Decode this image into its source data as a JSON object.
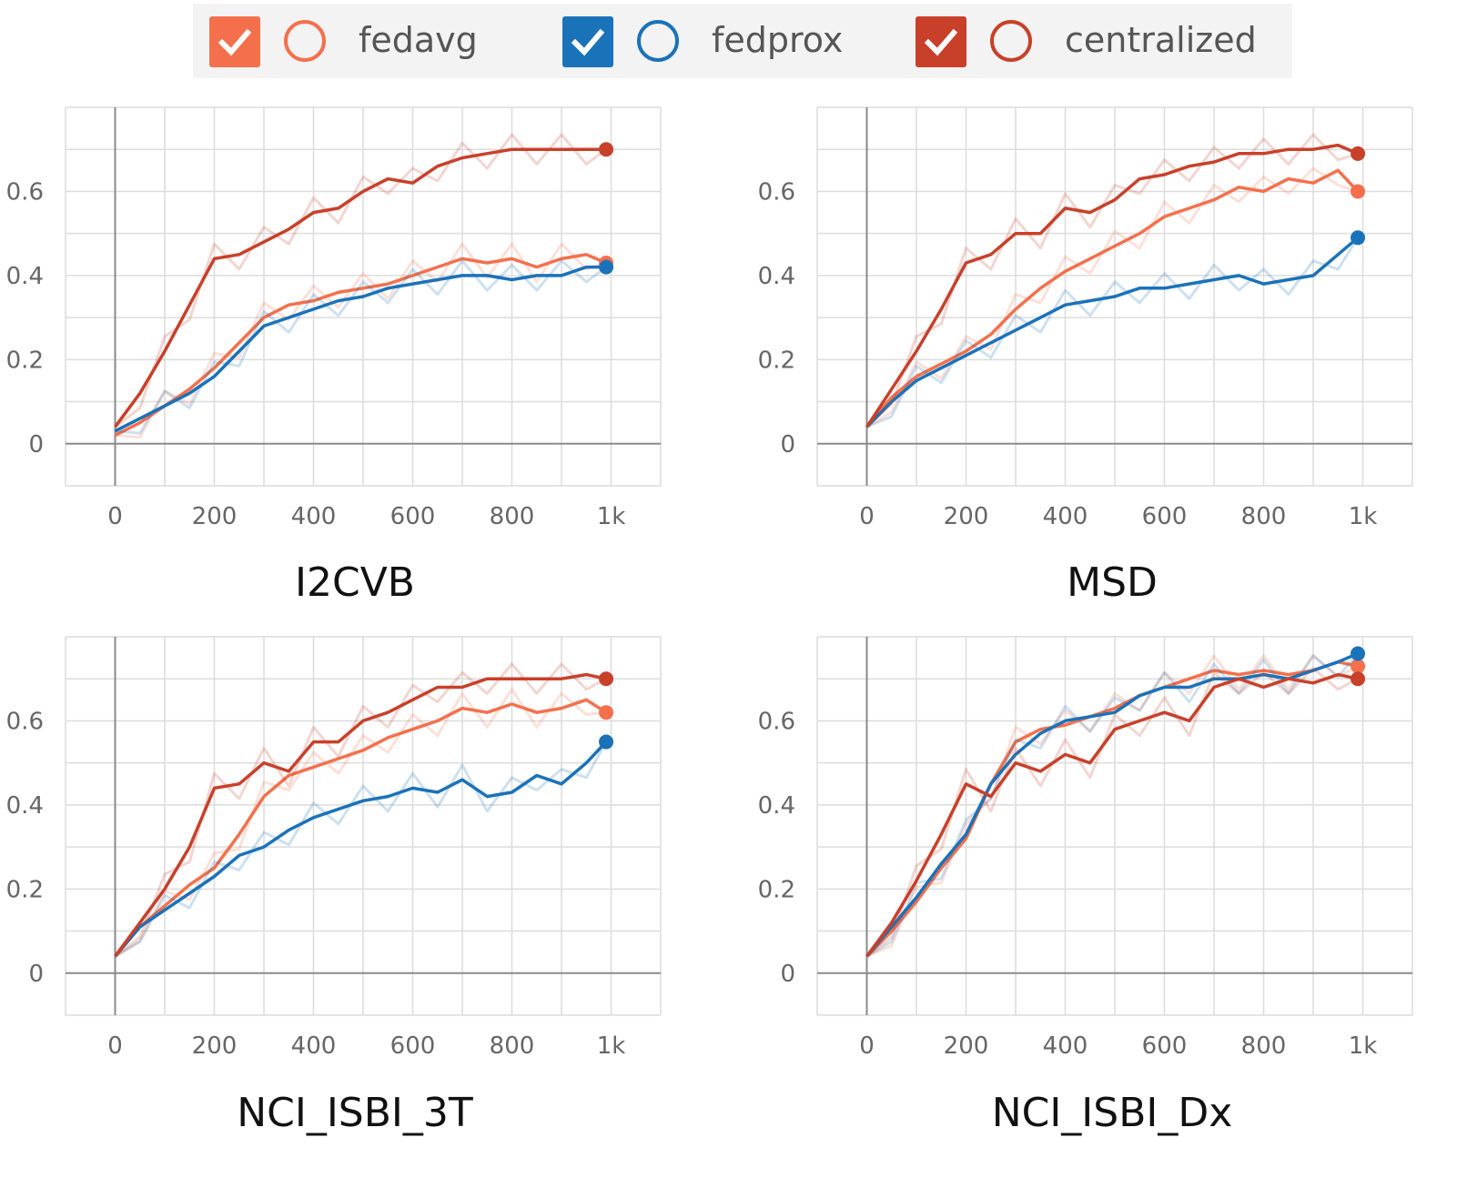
{
  "legend": [
    {
      "label": "fedavg",
      "color": "#f4704c",
      "checked": true
    },
    {
      "label": "fedprox",
      "color": "#1a72b9",
      "checked": true
    },
    {
      "label": "centralized",
      "color": "#c8402a",
      "checked": true
    }
  ],
  "colors": {
    "fedavg": "#f4704c",
    "fedprox": "#1a72b9",
    "centralized": "#c8402a"
  },
  "chart_data": [
    {
      "type": "line",
      "title": "I2CVB",
      "xlim": [
        -100,
        1100
      ],
      "ylim": [
        -0.1,
        0.8
      ],
      "xticks": [
        0,
        200,
        400,
        600,
        800,
        1000
      ],
      "xtick_labels": [
        "0",
        "200",
        "400",
        "600",
        "800",
        "1k"
      ],
      "yticks": [
        0,
        0.2,
        0.4,
        0.6
      ],
      "ytick_labels": [
        "0",
        "0.2",
        "0.4",
        "0.6"
      ],
      "series": [
        {
          "name": "fedavg",
          "x": [
            0,
            50,
            100,
            150,
            200,
            250,
            300,
            350,
            400,
            450,
            500,
            550,
            600,
            650,
            700,
            750,
            800,
            850,
            900,
            950,
            990
          ],
          "y": [
            0.02,
            0.05,
            0.09,
            0.13,
            0.18,
            0.24,
            0.3,
            0.33,
            0.34,
            0.36,
            0.37,
            0.38,
            0.4,
            0.42,
            0.44,
            0.43,
            0.44,
            0.42,
            0.44,
            0.45,
            0.43
          ]
        },
        {
          "name": "fedprox",
          "x": [
            0,
            50,
            100,
            150,
            200,
            250,
            300,
            350,
            400,
            450,
            500,
            550,
            600,
            650,
            700,
            750,
            800,
            850,
            900,
            950,
            990
          ],
          "y": [
            0.03,
            0.06,
            0.09,
            0.12,
            0.16,
            0.22,
            0.28,
            0.3,
            0.32,
            0.34,
            0.35,
            0.37,
            0.38,
            0.39,
            0.4,
            0.4,
            0.39,
            0.4,
            0.4,
            0.42,
            0.42
          ]
        },
        {
          "name": "centralized",
          "x": [
            0,
            50,
            100,
            150,
            200,
            250,
            300,
            350,
            400,
            450,
            500,
            550,
            600,
            650,
            700,
            750,
            800,
            850,
            900,
            950,
            990
          ],
          "y": [
            0.04,
            0.12,
            0.22,
            0.33,
            0.44,
            0.45,
            0.48,
            0.51,
            0.55,
            0.56,
            0.6,
            0.63,
            0.62,
            0.66,
            0.68,
            0.69,
            0.7,
            0.7,
            0.7,
            0.7,
            0.7
          ]
        }
      ]
    },
    {
      "type": "line",
      "title": "MSD",
      "xlim": [
        -100,
        1100
      ],
      "ylim": [
        -0.1,
        0.8
      ],
      "xticks": [
        0,
        200,
        400,
        600,
        800,
        1000
      ],
      "xtick_labels": [
        "0",
        "200",
        "400",
        "600",
        "800",
        "1k"
      ],
      "yticks": [
        0,
        0.2,
        0.4,
        0.6
      ],
      "ytick_labels": [
        "0",
        "0.2",
        "0.4",
        "0.6"
      ],
      "series": [
        {
          "name": "fedavg",
          "x": [
            0,
            50,
            100,
            150,
            200,
            250,
            300,
            350,
            400,
            450,
            500,
            550,
            600,
            650,
            700,
            750,
            800,
            850,
            900,
            950,
            990
          ],
          "y": [
            0.04,
            0.11,
            0.16,
            0.19,
            0.22,
            0.26,
            0.32,
            0.37,
            0.41,
            0.44,
            0.47,
            0.5,
            0.54,
            0.56,
            0.58,
            0.61,
            0.6,
            0.63,
            0.62,
            0.65,
            0.6
          ]
        },
        {
          "name": "fedprox",
          "x": [
            0,
            50,
            100,
            150,
            200,
            250,
            300,
            350,
            400,
            450,
            500,
            550,
            600,
            650,
            700,
            750,
            800,
            850,
            900,
            950,
            990
          ],
          "y": [
            0.04,
            0.1,
            0.15,
            0.18,
            0.21,
            0.24,
            0.27,
            0.3,
            0.33,
            0.34,
            0.35,
            0.37,
            0.37,
            0.38,
            0.39,
            0.4,
            0.38,
            0.39,
            0.4,
            0.45,
            0.49
          ]
        },
        {
          "name": "centralized",
          "x": [
            0,
            50,
            100,
            150,
            200,
            250,
            300,
            350,
            400,
            450,
            500,
            550,
            600,
            650,
            700,
            750,
            800,
            850,
            900,
            950,
            990
          ],
          "y": [
            0.04,
            0.13,
            0.22,
            0.32,
            0.43,
            0.45,
            0.5,
            0.5,
            0.56,
            0.55,
            0.58,
            0.63,
            0.64,
            0.66,
            0.67,
            0.69,
            0.69,
            0.7,
            0.7,
            0.71,
            0.69
          ]
        }
      ]
    },
    {
      "type": "line",
      "title": "NCI_ISBI_3T",
      "xlim": [
        -100,
        1100
      ],
      "ylim": [
        -0.1,
        0.8
      ],
      "xticks": [
        0,
        200,
        400,
        600,
        800,
        1000
      ],
      "xtick_labels": [
        "0",
        "200",
        "400",
        "600",
        "800",
        "1k"
      ],
      "yticks": [
        0,
        0.2,
        0.4,
        0.6
      ],
      "ytick_labels": [
        "0",
        "0.2",
        "0.4",
        "0.6"
      ],
      "series": [
        {
          "name": "fedavg",
          "x": [
            0,
            50,
            100,
            150,
            200,
            250,
            300,
            350,
            400,
            450,
            500,
            550,
            600,
            650,
            700,
            750,
            800,
            850,
            900,
            950,
            990
          ],
          "y": [
            0.04,
            0.11,
            0.16,
            0.21,
            0.25,
            0.33,
            0.42,
            0.47,
            0.49,
            0.51,
            0.53,
            0.56,
            0.58,
            0.6,
            0.63,
            0.62,
            0.64,
            0.62,
            0.63,
            0.65,
            0.62
          ]
        },
        {
          "name": "fedprox",
          "x": [
            0,
            50,
            100,
            150,
            200,
            250,
            300,
            350,
            400,
            450,
            500,
            550,
            600,
            650,
            700,
            750,
            800,
            850,
            900,
            950,
            990
          ],
          "y": [
            0.04,
            0.11,
            0.15,
            0.19,
            0.23,
            0.28,
            0.3,
            0.34,
            0.37,
            0.39,
            0.41,
            0.42,
            0.44,
            0.43,
            0.46,
            0.42,
            0.43,
            0.47,
            0.45,
            0.5,
            0.55
          ]
        },
        {
          "name": "centralized",
          "x": [
            0,
            50,
            100,
            150,
            200,
            250,
            300,
            350,
            400,
            450,
            500,
            550,
            600,
            650,
            700,
            750,
            800,
            850,
            900,
            950,
            990
          ],
          "y": [
            0.04,
            0.12,
            0.2,
            0.3,
            0.44,
            0.45,
            0.5,
            0.48,
            0.55,
            0.55,
            0.6,
            0.62,
            0.65,
            0.68,
            0.68,
            0.7,
            0.7,
            0.7,
            0.7,
            0.71,
            0.7
          ]
        }
      ]
    },
    {
      "type": "line",
      "title": "NCI_ISBI_Dx",
      "xlim": [
        -100,
        1100
      ],
      "ylim": [
        -0.1,
        0.8
      ],
      "xticks": [
        0,
        200,
        400,
        600,
        800,
        1000
      ],
      "xtick_labels": [
        "0",
        "200",
        "400",
        "600",
        "800",
        "1k"
      ],
      "yticks": [
        0,
        0.2,
        0.4,
        0.6
      ],
      "ytick_labels": [
        "0",
        "0.2",
        "0.4",
        "0.6"
      ],
      "series": [
        {
          "name": "fedavg",
          "x": [
            0,
            50,
            100,
            150,
            200,
            250,
            300,
            350,
            400,
            450,
            500,
            550,
            600,
            650,
            700,
            750,
            800,
            850,
            900,
            950,
            990
          ],
          "y": [
            0.04,
            0.1,
            0.17,
            0.25,
            0.32,
            0.45,
            0.55,
            0.58,
            0.59,
            0.61,
            0.63,
            0.66,
            0.68,
            0.7,
            0.72,
            0.71,
            0.72,
            0.71,
            0.72,
            0.74,
            0.73
          ]
        },
        {
          "name": "fedprox",
          "x": [
            0,
            50,
            100,
            150,
            200,
            250,
            300,
            350,
            400,
            450,
            500,
            550,
            600,
            650,
            700,
            750,
            800,
            850,
            900,
            950,
            990
          ],
          "y": [
            0.04,
            0.11,
            0.18,
            0.26,
            0.33,
            0.45,
            0.52,
            0.57,
            0.6,
            0.61,
            0.62,
            0.66,
            0.68,
            0.68,
            0.7,
            0.7,
            0.71,
            0.7,
            0.72,
            0.74,
            0.76
          ]
        },
        {
          "name": "centralized",
          "x": [
            0,
            50,
            100,
            150,
            200,
            250,
            300,
            350,
            400,
            450,
            500,
            550,
            600,
            650,
            700,
            750,
            800,
            850,
            900,
            950,
            990
          ],
          "y": [
            0.04,
            0.12,
            0.22,
            0.33,
            0.45,
            0.42,
            0.5,
            0.48,
            0.52,
            0.5,
            0.58,
            0.6,
            0.62,
            0.6,
            0.68,
            0.7,
            0.68,
            0.7,
            0.69,
            0.71,
            0.7
          ]
        }
      ]
    }
  ]
}
